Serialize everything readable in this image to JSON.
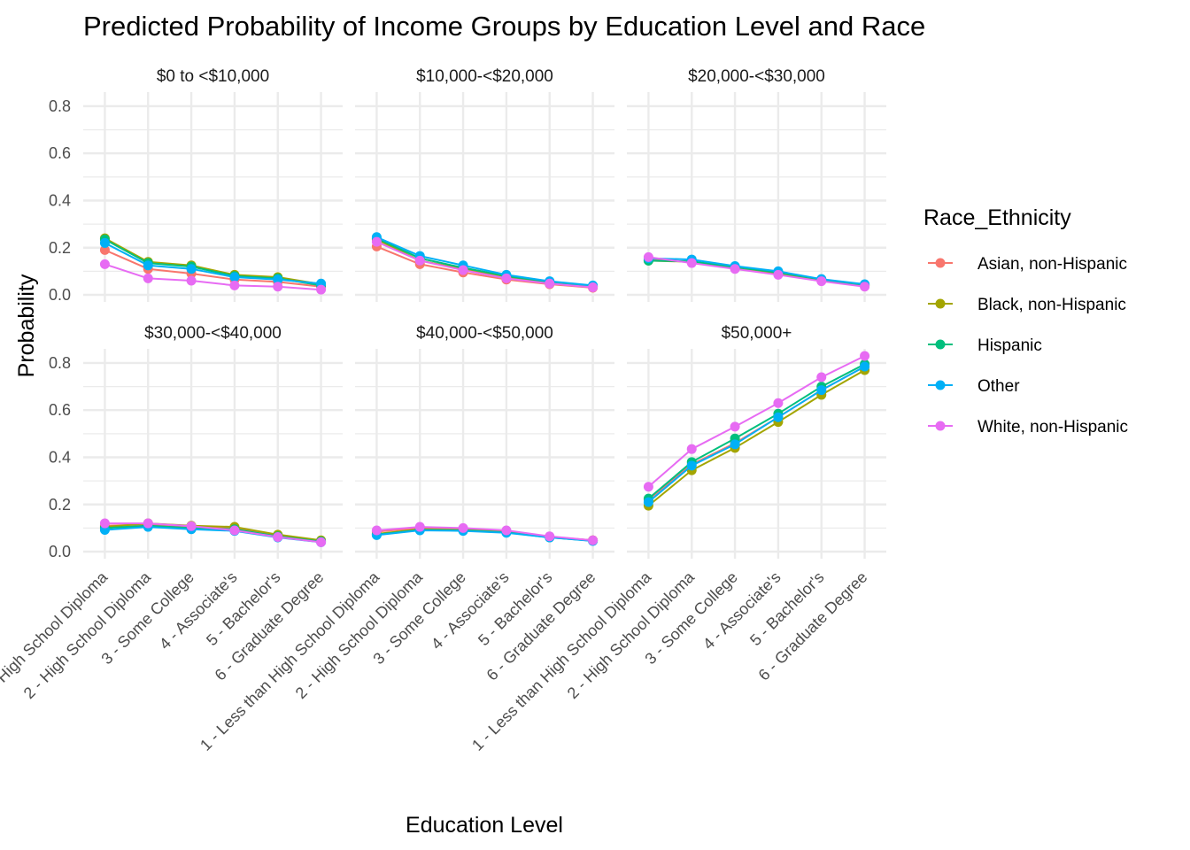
{
  "chart_data": {
    "type": "line",
    "title": "Predicted Probability of Income Groups by Education Level and Race",
    "xlabel": "Education Level",
    "ylabel": "Probability",
    "ylim": [
      -0.03,
      0.86
    ],
    "yticks": [
      0.0,
      0.2,
      0.4,
      0.6,
      0.8
    ],
    "ytick_labels": [
      "0.0",
      "0.2",
      "0.4",
      "0.6",
      "0.8"
    ],
    "grid": true,
    "legend_position": "right",
    "legend_title": "Race_Ethnicity",
    "categories": [
      "1 - Less than High School Diploma",
      "2 - High School Diploma",
      "3 - Some College",
      "4 - Associate's",
      "5 - Bachelor's",
      "6 - Graduate Degree"
    ],
    "series_meta": [
      {
        "name": "Asian, non-Hispanic",
        "color": "#F8766D"
      },
      {
        "name": "Black, non-Hispanic",
        "color": "#A3A500"
      },
      {
        "name": "Hispanic",
        "color": "#00BF7D"
      },
      {
        "name": "Other",
        "color": "#00B0F6"
      },
      {
        "name": "White, non-Hispanic",
        "color": "#E76BF3"
      }
    ],
    "panels": [
      {
        "title": "$0 to <$10,000",
        "series": [
          {
            "name": "Asian, non-Hispanic",
            "values": [
              0.19,
              0.11,
              0.09,
              0.065,
              0.055,
              0.035
            ]
          },
          {
            "name": "Black, non-Hispanic",
            "values": [
              0.24,
              0.14,
              0.125,
              0.085,
              0.075,
              0.045
            ]
          },
          {
            "name": "Hispanic",
            "values": [
              0.235,
              0.135,
              0.12,
              0.08,
              0.07,
              0.04
            ]
          },
          {
            "name": "Other",
            "values": [
              0.22,
              0.125,
              0.11,
              0.075,
              0.065,
              0.048
            ]
          },
          {
            "name": "White, non-Hispanic",
            "values": [
              0.13,
              0.07,
              0.06,
              0.04,
              0.035,
              0.022
            ]
          }
        ]
      },
      {
        "title": "$10,000-<$20,000",
        "series": [
          {
            "name": "Asian, non-Hispanic",
            "values": [
              0.205,
              0.13,
              0.095,
              0.065,
              0.045,
              0.03
            ]
          },
          {
            "name": "Black, non-Hispanic",
            "values": [
              0.235,
              0.145,
              0.11,
              0.075,
              0.05,
              0.035
            ]
          },
          {
            "name": "Hispanic",
            "values": [
              0.24,
              0.155,
              0.115,
              0.08,
              0.055,
              0.037
            ]
          },
          {
            "name": "Other",
            "values": [
              0.245,
              0.165,
              0.125,
              0.085,
              0.058,
              0.04
            ]
          },
          {
            "name": "White, non-Hispanic",
            "values": [
              0.225,
              0.145,
              0.105,
              0.07,
              0.048,
              0.032
            ]
          }
        ]
      },
      {
        "title": "$20,000-<$30,000",
        "series": [
          {
            "name": "Asian, non-Hispanic",
            "values": [
              0.15,
              0.14,
              0.115,
              0.09,
              0.062,
              0.04
            ]
          },
          {
            "name": "Black, non-Hispanic",
            "values": [
              0.145,
              0.14,
              0.115,
              0.092,
              0.063,
              0.04
            ]
          },
          {
            "name": "Hispanic",
            "values": [
              0.145,
              0.142,
              0.118,
              0.095,
              0.065,
              0.042
            ]
          },
          {
            "name": "Other",
            "values": [
              0.155,
              0.15,
              0.122,
              0.1,
              0.067,
              0.045
            ]
          },
          {
            "name": "White, non-Hispanic",
            "values": [
              0.16,
              0.135,
              0.11,
              0.085,
              0.058,
              0.035
            ]
          }
        ]
      },
      {
        "title": "$30,000-<$40,000",
        "series": [
          {
            "name": "Asian, non-Hispanic",
            "values": [
              0.11,
              0.115,
              0.105,
              0.1,
              0.07,
              0.045
            ]
          },
          {
            "name": "Black, non-Hispanic",
            "values": [
              0.105,
              0.12,
              0.11,
              0.105,
              0.072,
              0.048
            ]
          },
          {
            "name": "Hispanic",
            "values": [
              0.1,
              0.11,
              0.1,
              0.095,
              0.065,
              0.043
            ]
          },
          {
            "name": "Other",
            "values": [
              0.092,
              0.105,
              0.095,
              0.088,
              0.06,
              0.04
            ]
          },
          {
            "name": "White, non-Hispanic",
            "values": [
              0.12,
              0.12,
              0.108,
              0.09,
              0.062,
              0.04
            ]
          }
        ]
      },
      {
        "title": "$40,000-<$50,000",
        "series": [
          {
            "name": "Asian, non-Hispanic",
            "values": [
              0.085,
              0.1,
              0.095,
              0.085,
              0.062,
              0.048
            ]
          },
          {
            "name": "Black, non-Hispanic",
            "values": [
              0.075,
              0.095,
              0.092,
              0.085,
              0.063,
              0.048
            ]
          },
          {
            "name": "Hispanic",
            "values": [
              0.072,
              0.092,
              0.09,
              0.082,
              0.06,
              0.046
            ]
          },
          {
            "name": "Other",
            "values": [
              0.07,
              0.09,
              0.088,
              0.08,
              0.06,
              0.045
            ]
          },
          {
            "name": "White, non-Hispanic",
            "values": [
              0.09,
              0.105,
              0.1,
              0.09,
              0.065,
              0.048
            ]
          }
        ]
      },
      {
        "title": "$50,000+",
        "series": [
          {
            "name": "Asian, non-Hispanic",
            "values": [
              0.22,
              0.37,
              0.46,
              0.57,
              0.685,
              0.785
            ]
          },
          {
            "name": "Black, non-Hispanic",
            "values": [
              0.195,
              0.345,
              0.44,
              0.55,
              0.665,
              0.77
            ]
          },
          {
            "name": "Hispanic",
            "values": [
              0.225,
              0.38,
              0.48,
              0.585,
              0.7,
              0.795
            ]
          },
          {
            "name": "Other",
            "values": [
              0.21,
              0.365,
              0.455,
              0.57,
              0.685,
              0.785
            ]
          },
          {
            "name": "White, non-Hispanic",
            "values": [
              0.275,
              0.435,
              0.53,
              0.63,
              0.74,
              0.83
            ]
          }
        ]
      }
    ]
  }
}
